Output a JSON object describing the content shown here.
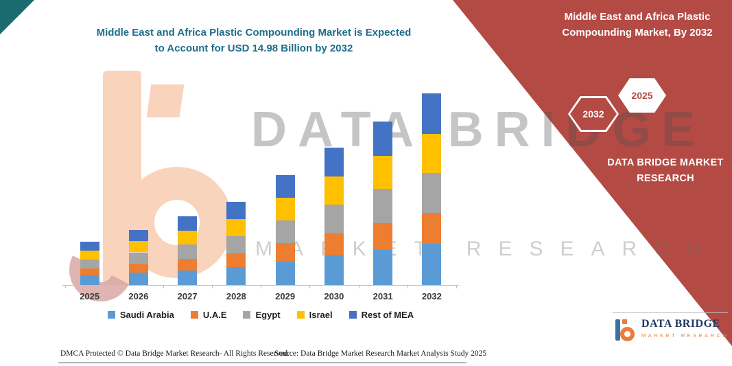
{
  "page": {
    "title_line1": "Middle East and Africa Plastic Compounding Market is Expected",
    "title_line2": "to Account for USD 14.98 Billion by 2032"
  },
  "colors": {
    "title": "#1D6D8D",
    "panel_red": "#B34A44",
    "corner_teal": "#1A6B70",
    "hexagon_year_text": "#B34A44",
    "logo_navy": "#1F3864",
    "logo_orange": "#E97E3C"
  },
  "right_panel": {
    "heading_line1": "Middle East and Africa Plastic",
    "heading_line2": "Compounding Market, By 2032",
    "hexagon_left": "2032",
    "hexagon_right": "2025",
    "brand_line1": "DATA BRIDGE MARKET",
    "brand_line2": "RESEARCH"
  },
  "watermark": {
    "line1": "DATA BRIDGE",
    "line2": "MARKET RESEARCH"
  },
  "footer": {
    "dmca": "DMCA Protected © Data Bridge Market Research-  All Rights Reserved.",
    "source": "Source: Data Bridge Market Research  Market Analysis Study 2025"
  },
  "logo": {
    "name": "DATA BRIDGE",
    "subtitle": "MARKET RESEARCH"
  },
  "chart_data": {
    "type": "bar",
    "stacked": true,
    "title": "Middle East and Africa Plastic Compounding Market is Expected to Account for USD 14.98 Billion by 2032",
    "unit": "USD Billion",
    "categories": [
      "2025",
      "2026",
      "2027",
      "2028",
      "2029",
      "2030",
      "2031",
      "2032"
    ],
    "series": [
      {
        "name": "Saudi Arabia",
        "color": "#5B9BD5",
        "values": [
          0.75,
          0.95,
          1.15,
          1.4,
          1.85,
          2.3,
          2.75,
          3.2
        ]
      },
      {
        "name": "U.A.E",
        "color": "#ED7D31",
        "values": [
          0.55,
          0.7,
          0.9,
          1.05,
          1.4,
          1.75,
          2.1,
          2.45
        ]
      },
      {
        "name": "Egypt",
        "color": "#A5A5A5",
        "values": [
          0.7,
          0.9,
          1.1,
          1.35,
          1.8,
          2.25,
          2.65,
          3.1
        ]
      },
      {
        "name": "Israel",
        "color": "#FFC000",
        "values": [
          0.7,
          0.9,
          1.1,
          1.35,
          1.75,
          2.2,
          2.6,
          3.05
        ]
      },
      {
        "name": "Rest of MEA",
        "color": "#4472C4",
        "values": [
          0.68,
          0.85,
          1.12,
          1.35,
          1.79,
          2.24,
          2.68,
          3.18
        ]
      }
    ],
    "estimated_totals": [
      3.38,
      4.3,
      5.37,
      6.5,
      8.59,
      10.74,
      12.78,
      14.98
    ],
    "stated_value_2032": 14.98,
    "ylim": [
      0,
      15.5
    ],
    "gridlines": false,
    "legend_position": "bottom"
  }
}
